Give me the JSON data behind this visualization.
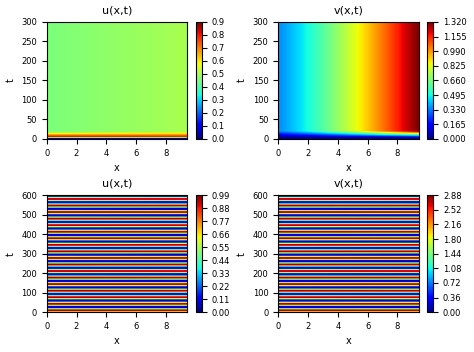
{
  "top_left": {
    "title": "u(x,t)",
    "xlabel": "x",
    "ylabel": "t",
    "t_max": 300,
    "x_max": 9.42,
    "colorbar_min": 0.0,
    "colorbar_max": 0.9,
    "colorbar_ticks": [
      0.0,
      0.1,
      0.2,
      0.3,
      0.4,
      0.5,
      0.6,
      0.7,
      0.8,
      0.9
    ],
    "cmap": "jet"
  },
  "top_right": {
    "title": "v(x,t)",
    "xlabel": "x",
    "ylabel": "t",
    "t_max": 300,
    "x_max": 9.42,
    "colorbar_min": 0.0,
    "colorbar_max": 1.32,
    "colorbar_ticks": [
      0.0,
      0.165,
      0.33,
      0.495,
      0.66,
      0.825,
      0.99,
      1.155,
      1.32
    ],
    "cmap": "jet"
  },
  "bot_left": {
    "title": "u(x,t)",
    "xlabel": "x",
    "ylabel": "t",
    "t_max": 600,
    "x_max": 9.42,
    "colorbar_min": 0.0,
    "colorbar_max": 0.99,
    "colorbar_ticks": [
      0.0,
      0.11,
      0.22,
      0.33,
      0.44,
      0.55,
      0.66,
      0.77,
      0.88,
      0.99
    ],
    "cmap": "jet",
    "n_bands": 18,
    "u_min": 0.0,
    "u_max": 0.99,
    "u_mean": 0.495
  },
  "bot_right": {
    "title": "v(x,t)",
    "xlabel": "x",
    "ylabel": "t",
    "t_max": 600,
    "x_max": 9.42,
    "colorbar_min": 0.0,
    "colorbar_max": 2.88,
    "colorbar_ticks": [
      0.0,
      0.36,
      0.72,
      1.08,
      1.44,
      1.8,
      2.16,
      2.52,
      2.88
    ],
    "cmap": "jet",
    "n_bands": 18,
    "v_min": 0.0,
    "v_max": 2.88,
    "v_mean": 1.44
  },
  "figsize": [
    4.74,
    3.52
  ],
  "dpi": 100
}
